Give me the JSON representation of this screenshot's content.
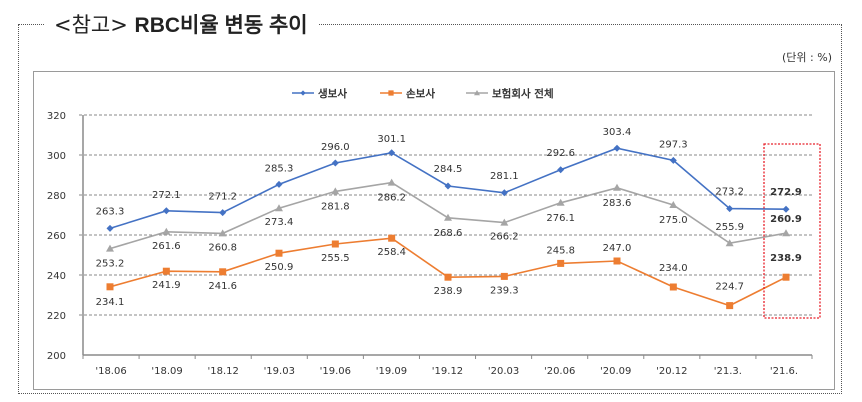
{
  "page": {
    "title_prefix": "<참고>",
    "title_main": "RBC비율 변동 추이",
    "unit": "(단위 : %)"
  },
  "colors": {
    "life": "#4472C4",
    "nonlife": "#ED7D31",
    "total": "#A5A5A5",
    "highlight": "#E8202A"
  },
  "chart_data": {
    "type": "line",
    "title": "RBC비율 변동 추이",
    "xlabel": "",
    "ylabel": "",
    "categories": [
      "'18.06",
      "'18.09",
      "'18.12",
      "'19.03",
      "'19.06",
      "'19.09",
      "'19.12",
      "'20.03",
      "'20.06",
      "'20.09",
      "'20.12",
      "'21.3.",
      "'21.6."
    ],
    "ylim": [
      200,
      320
    ],
    "yticks": [
      "200",
      "220",
      "240",
      "260",
      "280",
      "300",
      "320"
    ],
    "grid": true,
    "legend_position": "top-center",
    "series": [
      {
        "name": "생보사",
        "key": "life",
        "marker": "diamond",
        "values": [
          263.3,
          272.1,
          271.2,
          285.3,
          296.0,
          301.1,
          284.5,
          281.1,
          292.6,
          303.4,
          297.3,
          273.2,
          272.9
        ],
        "labels": [
          "263.3",
          "272.1",
          "271.2",
          "285.3",
          "296.0",
          "301.1",
          "284.5",
          "281.1",
          "292.6",
          "303.4",
          "297.3",
          "273.2",
          "272.9"
        ]
      },
      {
        "name": "손보사",
        "key": "nonlife",
        "marker": "square",
        "values": [
          234.1,
          241.9,
          241.6,
          250.9,
          255.5,
          258.4,
          238.9,
          239.3,
          245.8,
          247.0,
          234.0,
          224.7,
          238.9
        ],
        "labels": [
          "234.1",
          "241.9",
          "241.6",
          "250.9",
          "255.5",
          "258.4",
          "238.9",
          "239.3",
          "245.8",
          "247.0",
          "234.0",
          "224.7",
          "238.9"
        ]
      },
      {
        "name": "보험회사 전체",
        "key": "total",
        "marker": "triangle",
        "values": [
          253.2,
          261.6,
          260.8,
          273.4,
          281.8,
          286.2,
          268.6,
          266.2,
          276.1,
          283.6,
          275.0,
          255.9,
          260.9
        ],
        "labels": [
          "253.2",
          "261.6",
          "260.8",
          "273.4",
          "281.8",
          "286.2",
          "268.6",
          "266.2",
          "276.1",
          "283.6",
          "275.0",
          "255.9",
          "260.9"
        ]
      }
    ],
    "annotations": [
      "highlight box around '21.6."
    ]
  }
}
